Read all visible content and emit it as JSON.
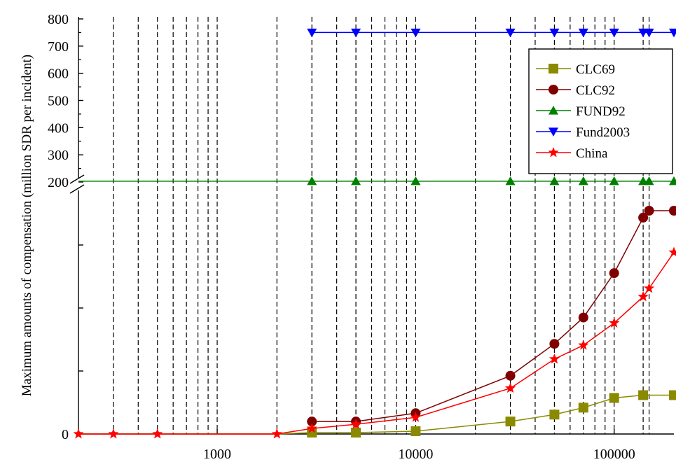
{
  "chart_data": {
    "type": "line",
    "title": "",
    "xlabel": "",
    "ylabel": "Maximum amounts of compensation (million SDR per incident)",
    "x_scale": "log",
    "xlim": [
      200,
      200000
    ],
    "x_tick_labels": [
      "1000",
      "10000",
      "100000"
    ],
    "x_ticks": [
      1000,
      10000,
      100000
    ],
    "y_upper_range": [
      200,
      800
    ],
    "y_upper_ticks": [
      200,
      300,
      400,
      500,
      600,
      700,
      800
    ],
    "y_upper_tick_labels": [
      "200",
      "300",
      "400",
      "500",
      "600",
      "700",
      "800"
    ],
    "y_lower_range": [
      0,
      200
    ],
    "y_lower_tick_labels": [
      "0"
    ],
    "y_axis_break": true,
    "vertical_gridlines": [
      300,
      400,
      500,
      600,
      700,
      800,
      900,
      1000,
      2000,
      3000,
      4000,
      5000,
      6000,
      7000,
      8000,
      9000,
      10000,
      20000,
      30000,
      40000,
      50000,
      60000,
      70000,
      80000,
      90000,
      100000,
      140000,
      150000
    ],
    "grid": "vertical dashed",
    "legend_position": "top-right",
    "series": [
      {
        "name": "CLC69",
        "color": "#8a8a00",
        "marker": "square",
        "points": [
          [
            200,
            0
          ],
          [
            300,
            0
          ],
          [
            500,
            0
          ],
          [
            1000,
            0
          ],
          [
            2000,
            0
          ],
          [
            3000,
            1
          ],
          [
            5000,
            1
          ],
          [
            10000,
            2
          ],
          [
            30000,
            9
          ],
          [
            50000,
            14
          ],
          [
            70000,
            19
          ],
          [
            100000,
            26
          ],
          [
            140000,
            28
          ],
          [
            200000,
            28
          ]
        ]
      },
      {
        "name": "CLC92",
        "color": "#800000",
        "marker": "circle",
        "points": [
          [
            3000,
            9
          ],
          [
            5000,
            9
          ],
          [
            10000,
            15
          ],
          [
            30000,
            42
          ],
          [
            50000,
            65
          ],
          [
            70000,
            84
          ],
          [
            100000,
            116
          ],
          [
            140000,
            156
          ],
          [
            150000,
            161
          ],
          [
            200000,
            161
          ]
        ]
      },
      {
        "name": "FUND92",
        "color": "#008000",
        "marker": "triangle-up",
        "points": [
          [
            200,
            203
          ],
          [
            3000,
            203
          ],
          [
            5000,
            203
          ],
          [
            10000,
            203
          ],
          [
            30000,
            203
          ],
          [
            50000,
            203
          ],
          [
            70000,
            203
          ],
          [
            100000,
            203
          ],
          [
            140000,
            203
          ],
          [
            150000,
            203
          ],
          [
            200000,
            203
          ]
        ]
      },
      {
        "name": "Fund2003",
        "color": "#0000ff",
        "marker": "triangle-down",
        "points": [
          [
            3000,
            750
          ],
          [
            5000,
            750
          ],
          [
            10000,
            750
          ],
          [
            30000,
            750
          ],
          [
            50000,
            750
          ],
          [
            70000,
            750
          ],
          [
            100000,
            750
          ],
          [
            140000,
            750
          ],
          [
            150000,
            750
          ],
          [
            200000,
            750
          ]
        ]
      },
      {
        "name": "China",
        "color": "#ff0000",
        "marker": "star",
        "points": [
          [
            200,
            0
          ],
          [
            300,
            0
          ],
          [
            500,
            0
          ],
          [
            2000,
            0
          ],
          [
            3000,
            4
          ],
          [
            5000,
            7
          ],
          [
            10000,
            12
          ],
          [
            30000,
            33
          ],
          [
            50000,
            54
          ],
          [
            70000,
            64
          ],
          [
            100000,
            80
          ],
          [
            140000,
            99
          ],
          [
            150000,
            105
          ],
          [
            200000,
            131
          ]
        ]
      }
    ]
  }
}
